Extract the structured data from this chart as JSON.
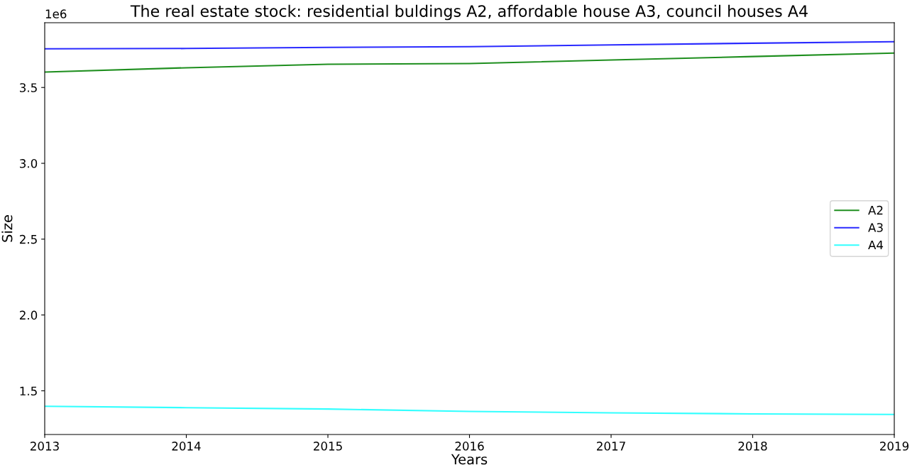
{
  "chart_data": {
    "type": "line",
    "title": "The real estate stock: residential buldings A2, affordable house A3, council houses A4",
    "xlabel": "Years",
    "ylabel": "Size",
    "annotations": [
      "1e6"
    ],
    "x": [
      2013,
      2014,
      2015,
      2016,
      2017,
      2018,
      2019
    ],
    "series": [
      {
        "name": "A2",
        "color": "#1f8f1f",
        "values": [
          3.602,
          3.63,
          3.653,
          3.658,
          3.681,
          3.704,
          3.727
        ]
      },
      {
        "name": "A3",
        "color": "#2a2aff",
        "values": [
          3.755,
          3.757,
          3.764,
          3.769,
          3.781,
          3.792,
          3.802
        ]
      },
      {
        "name": "A4",
        "color": "#33ffff",
        "values": [
          1.398,
          1.389,
          1.38,
          1.364,
          1.355,
          1.348,
          1.344
        ]
      }
    ],
    "xlim": [
      2013,
      2019
    ],
    "xticks": [
      2013,
      2014,
      2015,
      2016,
      2017,
      2018,
      2019
    ],
    "ylim": [
      1.212,
      3.927
    ],
    "yticks": [
      1.5,
      {
        "value": 2,
        "label": "2.0"
      },
      2.5,
      {
        "value": 3,
        "label": "3.0"
      },
      3.5
    ],
    "grid": false,
    "legend": "right",
    "marker": "none",
    "line_style": "solid"
  }
}
